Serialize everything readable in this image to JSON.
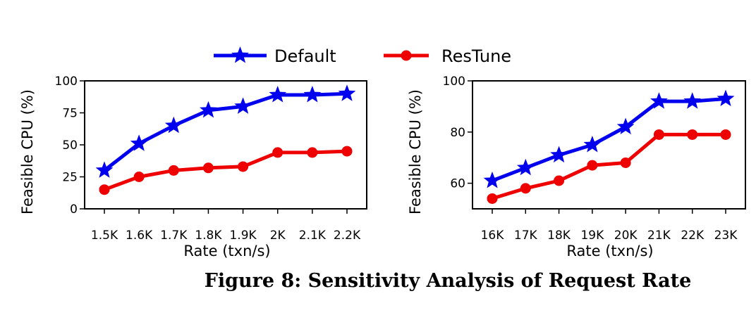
{
  "legend": {
    "position": "top-center",
    "entries": [
      {
        "label": "Default",
        "color": "#0000ee",
        "marker": "star-icon"
      },
      {
        "label": "ResTune",
        "color": "#ee0000",
        "marker": "circle-icon"
      }
    ]
  },
  "caption": "Figure 8: Sensitivity Analysis of Request Rate",
  "chart_data": [
    {
      "type": "line",
      "xlabel": "Rate (txn/s)",
      "ylabel": "Feasible CPU (%)",
      "categories": [
        "1.5K",
        "1.6K",
        "1.7K",
        "1.8K",
        "1.9K",
        "2K",
        "2.1K",
        "2.2K"
      ],
      "ylim": [
        0,
        100
      ],
      "yticks": [
        0,
        25,
        50,
        75,
        100
      ],
      "grid": false,
      "series": [
        {
          "name": "Default",
          "values": [
            30,
            51,
            65,
            77,
            80,
            89,
            89,
            90
          ]
        },
        {
          "name": "ResTune",
          "values": [
            15,
            25,
            30,
            32,
            33,
            44,
            44,
            45
          ]
        }
      ]
    },
    {
      "type": "line",
      "xlabel": "Rate (txn/s)",
      "ylabel": "Feasible CPU (%)",
      "categories": [
        "16K",
        "17K",
        "18K",
        "19K",
        "20K",
        "21K",
        "22K",
        "23K"
      ],
      "ylim": [
        50,
        100
      ],
      "yticks": [
        60,
        80,
        100
      ],
      "grid": false,
      "series": [
        {
          "name": "Default",
          "values": [
            61,
            66,
            71,
            75,
            82,
            92,
            92,
            93
          ]
        },
        {
          "name": "ResTune",
          "values": [
            54,
            58,
            61,
            67,
            68,
            79,
            79,
            79
          ]
        }
      ]
    }
  ]
}
